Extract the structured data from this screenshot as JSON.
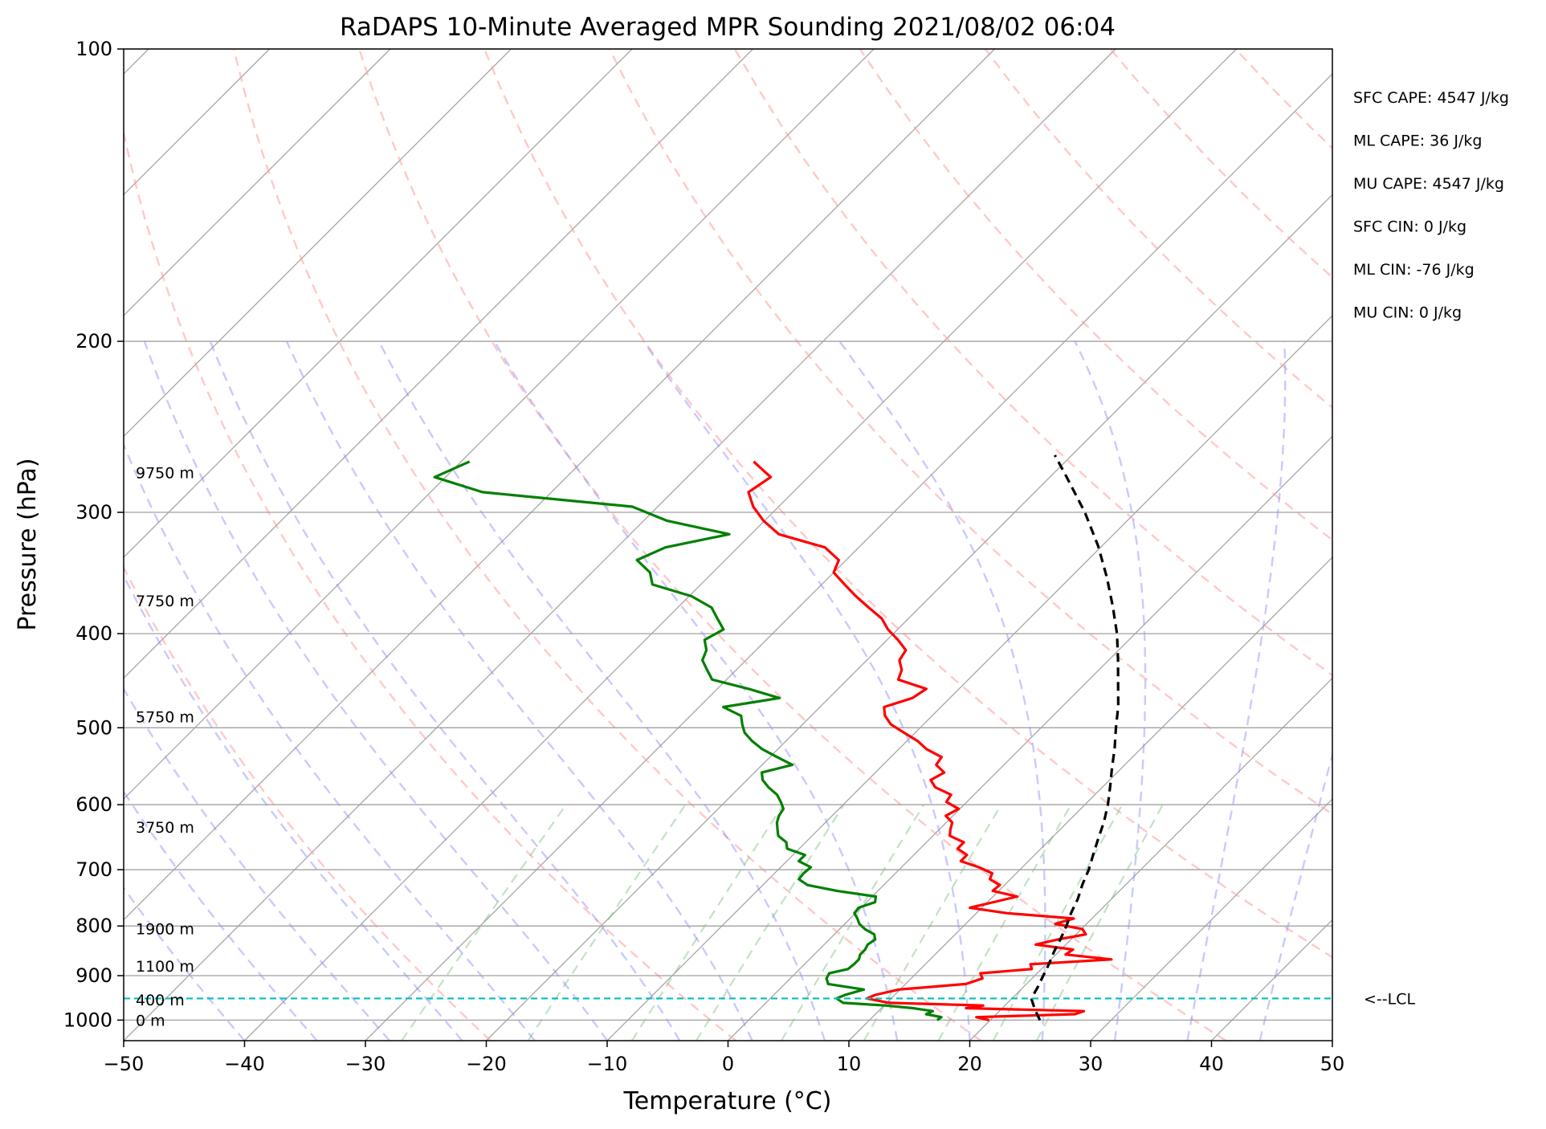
{
  "chart_data": {
    "type": "line",
    "title": "RaDAPS 10-Minute Averaged MPR Sounding 2021/08/02 06:04",
    "xlabel": "Temperature (°C)",
    "ylabel": "Pressure (hPa)",
    "xlim": [
      -50,
      50
    ],
    "ylim": [
      1050,
      100
    ],
    "y_scale": "log",
    "skew": true,
    "grid": true,
    "x_ticks": [
      -50,
      -40,
      -30,
      -20,
      -10,
      0,
      10,
      20,
      30,
      40,
      50
    ],
    "x_tick_labels": [
      "−50",
      "−40",
      "−30",
      "−20",
      "−10",
      "0",
      "10",
      "20",
      "30",
      "40",
      "50"
    ],
    "y_ticks": [
      1000,
      900,
      800,
      700,
      600,
      500,
      400,
      300,
      200,
      100
    ],
    "y_tick_labels": [
      "1000",
      "900",
      "800",
      "700",
      "600",
      "500",
      "400",
      "300",
      "200",
      "100"
    ],
    "series": [
      {
        "color": "#ff0000",
        "pressure": [
          1000,
          993,
          986,
          979,
          972,
          966,
          960,
          950,
          942,
          930,
          918,
          906,
          895,
          886,
          876,
          866,
          856,
          846,
          836,
          826,
          816,
          806,
          796,
          786,
          776,
          766,
          756,
          746,
          736,
          726,
          716,
          706,
          696,
          686,
          676,
          666,
          656,
          646,
          636,
          626,
          616,
          606,
          596,
          586,
          576,
          566,
          556,
          546,
          536,
          526,
          516,
          506,
          496,
          486,
          476,
          466,
          456,
          446,
          436,
          426,
          416,
          406,
          396,
          386,
          376,
          366,
          356,
          346,
          336,
          326,
          316,
          306,
          296,
          286,
          276,
          266
        ],
        "values": [
          19.9,
          18.6,
          26.5,
          27.0,
          17.0,
          18.2,
          10.2,
          8.0,
          8.4,
          9.9,
          15.0,
          15.9,
          15.3,
          19.2,
          18.7,
          25.0,
          20.8,
          21.0,
          17.5,
          18.9,
          20.8,
          20.1,
          17.4,
          18.5,
          12.5,
          9.0,
          10.5,
          12.0,
          9.5,
          9.6,
          8.3,
          8.0,
          6.4,
          4.4,
          4.4,
          3.1,
          3.1,
          1.4,
          0.9,
          0.5,
          -0.6,
          -0.1,
          -1.7,
          -1.9,
          -3.8,
          -4.8,
          -4.3,
          -5.6,
          -5.8,
          -7.7,
          -9.1,
          -10.9,
          -12.7,
          -13.9,
          -14.7,
          -13.1,
          -12.7,
          -15.8,
          -16.3,
          -17.3,
          -17.6,
          -19.1,
          -20.8,
          -22.2,
          -24.2,
          -26.2,
          -28.1,
          -30.0,
          -30.6,
          -32.8,
          -37.7,
          -40.1,
          -42.1,
          -43.7,
          -43.1,
          -45.8
        ]
      },
      {
        "color": "#008000",
        "pressure": [
          1000,
          993,
          986,
          979,
          972,
          966,
          960,
          950,
          942,
          930,
          918,
          906,
          895,
          886,
          876,
          866,
          856,
          846,
          836,
          826,
          816,
          806,
          796,
          786,
          776,
          766,
          756,
          746,
          736,
          726,
          716,
          706,
          696,
          686,
          676,
          666,
          656,
          646,
          636,
          626,
          616,
          606,
          596,
          586,
          576,
          566,
          556,
          546,
          536,
          526,
          516,
          506,
          496,
          486,
          476,
          466,
          456,
          446,
          436,
          426,
          416,
          406,
          396,
          386,
          376,
          366,
          356,
          346,
          336,
          326,
          316,
          306,
          296,
          286,
          276,
          266
        ],
        "values": [
          15.6,
          15.7,
          14.2,
          14.5,
          12.6,
          10.1,
          6.4,
          5.5,
          5.9,
          7.0,
          3.6,
          3.0,
          2.8,
          4.0,
          4.1,
          4.1,
          3.8,
          3.8,
          3.6,
          3.8,
          3.3,
          2.1,
          1.2,
          0.6,
          -0.1,
          -0.2,
          0.7,
          0.3,
          -3.4,
          -6.3,
          -7.5,
          -7.6,
          -7.5,
          -9.0,
          -9.0,
          -11.0,
          -11.6,
          -12.8,
          -13.4,
          -14.0,
          -14.4,
          -14.6,
          -15.4,
          -16.3,
          -17.6,
          -18.7,
          -19.4,
          -17.5,
          -19.4,
          -21.3,
          -22.8,
          -24.1,
          -25.0,
          -25.8,
          -28.0,
          -24.1,
          -27.4,
          -31.2,
          -32.4,
          -33.6,
          -34.1,
          -35.1,
          -34.4,
          -35.8,
          -37.2,
          -39.8,
          -44.0,
          -45.2,
          -47.3,
          -46.0,
          -41.8,
          -48.1,
          -52.1,
          -65.7,
          -70.9,
          -69.3
        ]
      },
      {
        "color": "#000000",
        "style": "dashed",
        "pressure": [
          1000,
          975,
          950,
          925,
          900,
          875,
          850,
          825,
          800,
          775,
          750,
          725,
          700,
          675,
          650,
          625,
          600,
          575,
          550,
          525,
          500,
          475,
          450,
          425,
          400,
          375,
          350,
          325,
          300,
          275,
          262
        ],
        "values": [
          24.1,
          22.8,
          21.6,
          21.2,
          20.7,
          20.2,
          19.6,
          19.1,
          18.5,
          17.8,
          17.2,
          16.4,
          15.7,
          14.8,
          13.9,
          13.0,
          11.9,
          10.6,
          9.2,
          7.8,
          6.2,
          4.6,
          2.7,
          0.7,
          -1.5,
          -4.1,
          -7.0,
          -10.3,
          -14.2,
          -18.8,
          -21.4
        ]
      }
    ],
    "lcl_pressure": 950,
    "lcl_color": "#00bfbf",
    "lcl_label": "<--LCL",
    "height_labels": [
      {
        "label": "0 m",
        "pressure": 1000
      },
      {
        "label": "400 m",
        "pressure": 953
      },
      {
        "label": "1100 m",
        "pressure": 880
      },
      {
        "label": "1900 m",
        "pressure": 805
      },
      {
        "label": "3750 m",
        "pressure": 633
      },
      {
        "label": "5750 m",
        "pressure": 487
      },
      {
        "label": "7750 m",
        "pressure": 370
      },
      {
        "label": "9750 m",
        "pressure": 273
      }
    ],
    "stats": [
      {
        "label": "SFC CAPE: 4547 J/kg"
      },
      {
        "label": "ML CAPE: 36 J/kg"
      },
      {
        "label": "MU CAPE: 4547 J/kg"
      },
      {
        "label": "SFC CIN: 0 J/kg"
      },
      {
        "label": "ML CIN: -76 J/kg"
      },
      {
        "label": "MU CIN: 0 J/kg"
      }
    ]
  }
}
